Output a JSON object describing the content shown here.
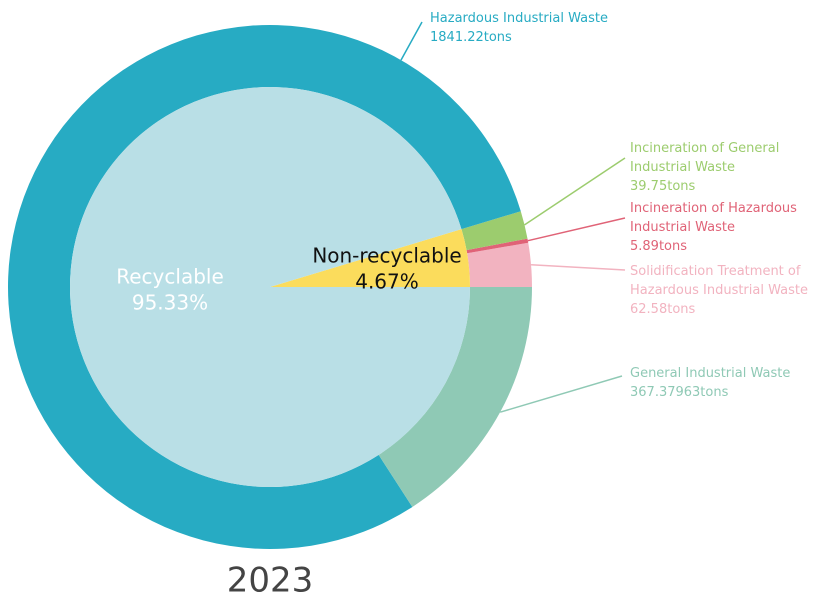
{
  "chart_data": {
    "type": "pie",
    "title": "2023",
    "inner": {
      "categories": [
        "Non-recyclable",
        "Recyclable"
      ],
      "values": [
        4.67,
        95.33
      ],
      "value_labels": [
        "4.67%",
        "95.33%"
      ],
      "colors": [
        "#fbdc5c",
        "#b9dfe6"
      ]
    },
    "outer": {
      "categories": [
        "Solidification Treatment of Hazardous Industrial Waste",
        "Incineration of Hazardous Industrial Waste",
        "Incineration of General Industrial Waste",
        "Hazardous Industrial Waste",
        "General Industrial Waste"
      ],
      "values": [
        62.58,
        5.89,
        39.75,
        1841.22,
        367.37963
      ],
      "value_labels": [
        "62.58tons",
        "5.89tons",
        "39.75tons",
        "1841.22tons",
        "367.37963tons"
      ],
      "colors": [
        "#f2b3c0",
        "#e06377",
        "#9ccc6e",
        "#27abc3",
        "#8fc9b5"
      ]
    }
  }
}
